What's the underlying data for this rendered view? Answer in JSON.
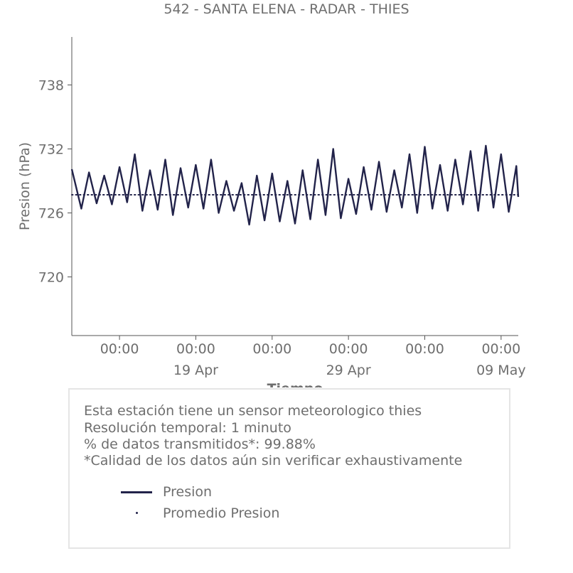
{
  "chart_data": {
    "type": "line",
    "title": "542 - SANTA ELENA - RADAR - THIES",
    "xlabel": "Tiempo",
    "ylabel": "Presion (hPa)",
    "x_range": [
      "2022-04-10T21:00",
      "2022-05-10T03:00"
    ],
    "ylim": [
      714.5,
      742.5
    ],
    "yticks": [
      720,
      726,
      732,
      738
    ],
    "xticks": [
      {
        "x": "2022-04-14T00:00",
        "label": "00:00"
      },
      {
        "x": "2022-04-19T00:00",
        "label": "00:00",
        "sublabel": "19 Apr"
      },
      {
        "x": "2022-04-24T00:00",
        "label": "00:00"
      },
      {
        "x": "2022-04-29T00:00",
        "label": "00:00",
        "sublabel": "29 Apr"
      },
      {
        "x": "2022-05-04T00:00",
        "label": "00:00"
      },
      {
        "x": "2022-05-09T00:00",
        "label": "00:00",
        "sublabel": "09 May"
      }
    ],
    "grid": false,
    "legend_placement": "bottom",
    "series": [
      {
        "name": "Presion",
        "color": "#22234a",
        "style": "line",
        "points": [
          {
            "x": "2022-04-10T21:00",
            "y": 730.1
          },
          {
            "x": "2022-04-11T12:00",
            "y": 726.4
          },
          {
            "x": "2022-04-12T00:00",
            "y": 729.8
          },
          {
            "x": "2022-04-12T12:00",
            "y": 726.9
          },
          {
            "x": "2022-04-13T00:00",
            "y": 729.5
          },
          {
            "x": "2022-04-13T12:00",
            "y": 726.8
          },
          {
            "x": "2022-04-14T00:00",
            "y": 730.3
          },
          {
            "x": "2022-04-14T12:00",
            "y": 727.0
          },
          {
            "x": "2022-04-15T00:00",
            "y": 731.5
          },
          {
            "x": "2022-04-15T12:00",
            "y": 726.2
          },
          {
            "x": "2022-04-16T00:00",
            "y": 730.0
          },
          {
            "x": "2022-04-16T12:00",
            "y": 726.3
          },
          {
            "x": "2022-04-17T00:00",
            "y": 731.0
          },
          {
            "x": "2022-04-17T12:00",
            "y": 725.8
          },
          {
            "x": "2022-04-18T00:00",
            "y": 730.2
          },
          {
            "x": "2022-04-18T12:00",
            "y": 726.5
          },
          {
            "x": "2022-04-19T00:00",
            "y": 730.5
          },
          {
            "x": "2022-04-19T12:00",
            "y": 726.4
          },
          {
            "x": "2022-04-20T00:00",
            "y": 731.0
          },
          {
            "x": "2022-04-20T12:00",
            "y": 726.0
          },
          {
            "x": "2022-04-21T00:00",
            "y": 729.0
          },
          {
            "x": "2022-04-21T12:00",
            "y": 726.2
          },
          {
            "x": "2022-04-22T00:00",
            "y": 728.8
          },
          {
            "x": "2022-04-22T12:00",
            "y": 724.9
          },
          {
            "x": "2022-04-23T00:00",
            "y": 729.5
          },
          {
            "x": "2022-04-23T12:00",
            "y": 725.3
          },
          {
            "x": "2022-04-24T00:00",
            "y": 729.7
          },
          {
            "x": "2022-04-24T12:00",
            "y": 725.2
          },
          {
            "x": "2022-04-25T00:00",
            "y": 729.0
          },
          {
            "x": "2022-04-25T12:00",
            "y": 725.0
          },
          {
            "x": "2022-04-26T00:00",
            "y": 730.0
          },
          {
            "x": "2022-04-26T12:00",
            "y": 725.4
          },
          {
            "x": "2022-04-27T00:00",
            "y": 731.0
          },
          {
            "x": "2022-04-27T12:00",
            "y": 725.8
          },
          {
            "x": "2022-04-28T00:00",
            "y": 732.0
          },
          {
            "x": "2022-04-28T12:00",
            "y": 725.5
          },
          {
            "x": "2022-04-29T00:00",
            "y": 729.2
          },
          {
            "x": "2022-04-29T12:00",
            "y": 725.9
          },
          {
            "x": "2022-04-30T00:00",
            "y": 730.3
          },
          {
            "x": "2022-04-30T12:00",
            "y": 726.3
          },
          {
            "x": "2022-05-01T00:00",
            "y": 730.8
          },
          {
            "x": "2022-05-01T12:00",
            "y": 726.1
          },
          {
            "x": "2022-05-02T00:00",
            "y": 730.0
          },
          {
            "x": "2022-05-02T12:00",
            "y": 726.5
          },
          {
            "x": "2022-05-03T00:00",
            "y": 731.5
          },
          {
            "x": "2022-05-03T12:00",
            "y": 726.0
          },
          {
            "x": "2022-05-04T00:00",
            "y": 732.2
          },
          {
            "x": "2022-05-04T12:00",
            "y": 726.4
          },
          {
            "x": "2022-05-05T00:00",
            "y": 730.5
          },
          {
            "x": "2022-05-05T12:00",
            "y": 726.2
          },
          {
            "x": "2022-05-06T00:00",
            "y": 731.0
          },
          {
            "x": "2022-05-06T12:00",
            "y": 726.8
          },
          {
            "x": "2022-05-07T00:00",
            "y": 731.8
          },
          {
            "x": "2022-05-07T12:00",
            "y": 726.2
          },
          {
            "x": "2022-05-08T00:00",
            "y": 732.3
          },
          {
            "x": "2022-05-08T12:00",
            "y": 726.5
          },
          {
            "x": "2022-05-09T00:00",
            "y": 731.5
          },
          {
            "x": "2022-05-09T12:00",
            "y": 726.1
          },
          {
            "x": "2022-05-10T00:00",
            "y": 730.4
          },
          {
            "x": "2022-05-10T03:00",
            "y": 727.5
          }
        ]
      },
      {
        "name": "Promedio Presion",
        "color": "#22234a",
        "style": "dotted",
        "points": [
          {
            "x": "2022-04-10T21:00",
            "y": 727.7
          },
          {
            "x": "2022-05-10T03:00",
            "y": 727.7
          }
        ]
      }
    ]
  },
  "info": {
    "lines": [
      "Esta estación tiene un sensor meteorologico thies",
      "Resolución temporal: 1 minuto",
      "% de datos transmitidos*: 99.88%",
      "*Calidad de los datos aún sin verificar exhaustivamente"
    ]
  },
  "legend": {
    "items": [
      {
        "label": "Presion",
        "symbol": "line",
        "color": "#22234a"
      },
      {
        "label": "Promedio Presion",
        "symbol": "dot",
        "color": "#22234a"
      }
    ]
  }
}
